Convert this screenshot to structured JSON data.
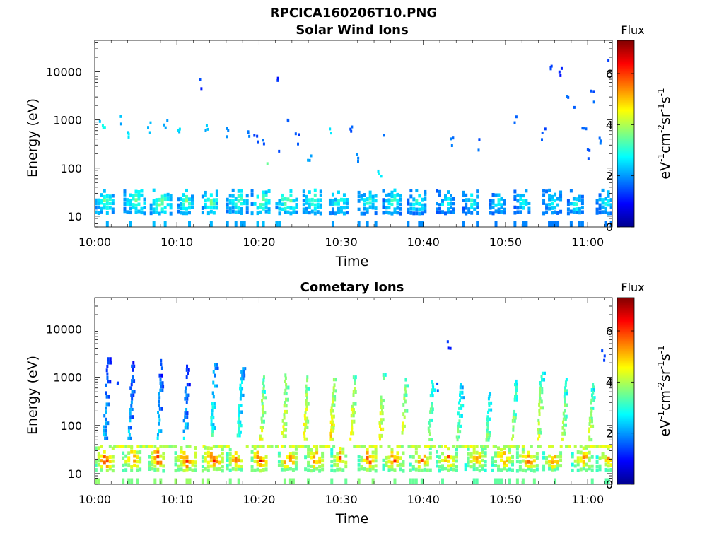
{
  "figure": {
    "title": "RPCICA160206T10.PNG"
  },
  "colors": {
    "colormap": [
      "#00008f",
      "#0000ff",
      "#0080ff",
      "#00ffff",
      "#80ff80",
      "#ffff00",
      "#ff8000",
      "#ff0000",
      "#800000"
    ]
  },
  "chart_data": [
    {
      "type": "heatmap",
      "title": "Solar Wind Ions",
      "xlabel": "Time",
      "ylabel": "Energy (eV)",
      "x_tick_labels": [
        "10:00",
        "10:10",
        "10:20",
        "10:30",
        "10:40",
        "10:50",
        "11:00"
      ],
      "y_tick_labels": [
        "10",
        "100",
        "1000",
        "10000"
      ],
      "y_scale": "log",
      "xlim_minutes_after_10": [
        0,
        63
      ],
      "ylim": [
        6,
        45000
      ],
      "colorbar": {
        "label": "Flux",
        "unit_base": "eV",
        "unit_exp1": "-1",
        "unit_base2": "cm",
        "unit_exp2": "-2",
        "unit_base3": "sr",
        "unit_exp3": "-1",
        "unit_base4": "s",
        "unit_exp4": "-1",
        "range": [
          0,
          7.3
        ],
        "tick_labels": [
          "0",
          "2",
          "4",
          "6"
        ]
      },
      "bursts": [
        {
          "t": 0.5,
          "e": 20,
          "flux": 3.6
        },
        {
          "t": 4.0,
          "e": 20,
          "flux": 3.7
        },
        {
          "t": 7.2,
          "e": 20,
          "flux": 3.8
        },
        {
          "t": 10.5,
          "e": 20,
          "flux": 3.6
        },
        {
          "t": 13.5,
          "e": 20,
          "flux": 3.7
        },
        {
          "t": 16.5,
          "e": 20,
          "flux": 3.5
        },
        {
          "t": 19.5,
          "e": 20,
          "flux": 3.8
        },
        {
          "t": 22.5,
          "e": 20,
          "flux": 3.7
        },
        {
          "t": 25.8,
          "e": 20,
          "flux": 3.5
        },
        {
          "t": 29.0,
          "e": 20,
          "flux": 3.4
        },
        {
          "t": 32.5,
          "e": 20,
          "flux": 3.3
        },
        {
          "t": 35.5,
          "e": 20,
          "flux": 3.3
        },
        {
          "t": 38.5,
          "e": 20,
          "flux": 3.2
        },
        {
          "t": 42.0,
          "e": 20,
          "flux": 3.1
        },
        {
          "t": 45.2,
          "e": 20,
          "flux": 3.1
        },
        {
          "t": 48.5,
          "e": 20,
          "flux": 3.0
        },
        {
          "t": 51.5,
          "e": 20,
          "flux": 3.1
        },
        {
          "t": 55.0,
          "e": 20,
          "flux": 3.0
        },
        {
          "t": 58.0,
          "e": 20,
          "flux": 3.1
        },
        {
          "t": 61.5,
          "e": 20,
          "flux": 3.0
        }
      ],
      "scatter": [
        {
          "t": 0.5,
          "e": 900,
          "flux": 2.4
        },
        {
          "t": 1.0,
          "e": 600,
          "flux": 2.8
        },
        {
          "t": 3.2,
          "e": 900,
          "flux": 2.2
        },
        {
          "t": 4.0,
          "e": 550,
          "flux": 2.5
        },
        {
          "t": 6.5,
          "e": 700,
          "flux": 2.3
        },
        {
          "t": 8.5,
          "e": 800,
          "flux": 2.1
        },
        {
          "t": 10.0,
          "e": 650,
          "flux": 2.4
        },
        {
          "t": 12.8,
          "e": 5200,
          "flux": 1.3
        },
        {
          "t": 13.5,
          "e": 700,
          "flux": 2.2
        },
        {
          "t": 16.0,
          "e": 500,
          "flux": 1.8
        },
        {
          "t": 18.5,
          "e": 600,
          "flux": 1.7
        },
        {
          "t": 19.5,
          "e": 400,
          "flux": 1.5
        },
        {
          "t": 20.5,
          "e": 300,
          "flux": 1.6
        },
        {
          "t": 21.0,
          "e": 120,
          "flux": 3.3
        },
        {
          "t": 22.0,
          "e": 7000,
          "flux": 1.2
        },
        {
          "t": 22.5,
          "e": 250,
          "flux": 1.6
        },
        {
          "t": 23.5,
          "e": 1100,
          "flux": 1.7
        },
        {
          "t": 24.5,
          "e": 400,
          "flux": 1.5
        },
        {
          "t": 26.0,
          "e": 150,
          "flux": 2.0
        },
        {
          "t": 28.5,
          "e": 700,
          "flux": 2.6
        },
        {
          "t": 31.0,
          "e": 600,
          "flux": 1.6
        },
        {
          "t": 32.0,
          "e": 150,
          "flux": 2.0
        },
        {
          "t": 34.5,
          "e": 70,
          "flux": 2.6
        },
        {
          "t": 35.0,
          "e": 500,
          "flux": 1.6
        },
        {
          "t": 43.5,
          "e": 350,
          "flux": 1.7
        },
        {
          "t": 46.5,
          "e": 300,
          "flux": 1.6
        },
        {
          "t": 51.0,
          "e": 1100,
          "flux": 1.7
        },
        {
          "t": 54.5,
          "e": 500,
          "flux": 1.5
        },
        {
          "t": 55.5,
          "e": 13000,
          "flux": 1.3
        },
        {
          "t": 56.5,
          "e": 9000,
          "flux": 1.2
        },
        {
          "t": 57.5,
          "e": 3000,
          "flux": 1.6
        },
        {
          "t": 58.5,
          "e": 1500,
          "flux": 1.5
        },
        {
          "t": 59.5,
          "e": 600,
          "flux": 1.6
        },
        {
          "t": 60.0,
          "e": 200,
          "flux": 1.5
        },
        {
          "t": 60.5,
          "e": 3000,
          "flux": 1.6
        },
        {
          "t": 61.5,
          "e": 400,
          "flux": 1.7
        },
        {
          "t": 62.5,
          "e": 15000,
          "flux": 1.4
        }
      ]
    },
    {
      "type": "heatmap",
      "title": "Cometary Ions",
      "xlabel": "Time",
      "ylabel": "Energy (eV)",
      "x_tick_labels": [
        "10:00",
        "10:10",
        "10:20",
        "10:30",
        "10:40",
        "10:50",
        "11:00"
      ],
      "y_tick_labels": [
        "10",
        "100",
        "1000",
        "10000"
      ],
      "y_scale": "log",
      "xlim_minutes_after_10": [
        0,
        63
      ],
      "ylim": [
        6,
        45000
      ],
      "colorbar": {
        "label": "Flux",
        "unit_base": "eV",
        "unit_exp1": "-1",
        "unit_base2": "cm",
        "unit_exp2": "-2",
        "unit_base3": "sr",
        "unit_exp3": "-1",
        "unit_base4": "s",
        "unit_exp4": "-1",
        "range": [
          0,
          7.3
        ],
        "tick_labels": [
          "0",
          "2",
          "4",
          "6"
        ]
      },
      "bursts": [
        {
          "t": 0.5,
          "e": 20,
          "flux": 6.3
        },
        {
          "t": 3.8,
          "e": 20,
          "flux": 6.0
        },
        {
          "t": 7.0,
          "e": 20,
          "flux": 6.2
        },
        {
          "t": 10.2,
          "e": 20,
          "flux": 6.4
        },
        {
          "t": 13.5,
          "e": 20,
          "flux": 6.3
        },
        {
          "t": 16.5,
          "e": 20,
          "flux": 6.0
        },
        {
          "t": 19.5,
          "e": 20,
          "flux": 6.5
        },
        {
          "t": 22.8,
          "e": 20,
          "flux": 6.1
        },
        {
          "t": 26.0,
          "e": 20,
          "flux": 6.0
        },
        {
          "t": 29.2,
          "e": 20,
          "flux": 5.8
        },
        {
          "t": 32.5,
          "e": 20,
          "flux": 6.2
        },
        {
          "t": 35.5,
          "e": 20,
          "flux": 6.0
        },
        {
          "t": 38.8,
          "e": 20,
          "flux": 5.8
        },
        {
          "t": 42.0,
          "e": 20,
          "flux": 5.7
        },
        {
          "t": 45.5,
          "e": 20,
          "flux": 5.6
        },
        {
          "t": 48.8,
          "e": 20,
          "flux": 5.7
        },
        {
          "t": 51.8,
          "e": 20,
          "flux": 5.9
        },
        {
          "t": 55.0,
          "e": 20,
          "flux": 5.8
        },
        {
          "t": 58.5,
          "e": 20,
          "flux": 5.7
        },
        {
          "t": 61.5,
          "e": 20,
          "flux": 5.6
        }
      ],
      "streaks": [
        {
          "t": 1.5,
          "e_top": 2400,
          "flux": 1.2
        },
        {
          "t": 4.5,
          "e_top": 2000,
          "flux": 1.2
        },
        {
          "t": 8.0,
          "e_top": 2200,
          "flux": 1.3
        },
        {
          "t": 11.2,
          "e_top": 2000,
          "flux": 1.3
        },
        {
          "t": 14.5,
          "e_top": 1800,
          "flux": 2.0
        },
        {
          "t": 17.8,
          "e_top": 1500,
          "flux": 2.2
        },
        {
          "t": 20.5,
          "e_top": 1000,
          "flux": 3.2
        },
        {
          "t": 23.2,
          "e_top": 1100,
          "flux": 3.4
        },
        {
          "t": 25.8,
          "e_top": 1000,
          "flux": 3.5
        },
        {
          "t": 29.0,
          "e_top": 900,
          "flux": 3.6
        },
        {
          "t": 31.5,
          "e_top": 1000,
          "flux": 3.6
        },
        {
          "t": 35.0,
          "e_top": 1300,
          "flux": 3.5
        },
        {
          "t": 37.8,
          "e_top": 1200,
          "flux": 3.3
        },
        {
          "t": 41.0,
          "e_top": 800,
          "flux": 2.8
        },
        {
          "t": 44.5,
          "e_top": 700,
          "flux": 2.6
        },
        {
          "t": 48.0,
          "e_top": 500,
          "flux": 2.5
        },
        {
          "t": 51.2,
          "e_top": 1100,
          "flux": 2.9
        },
        {
          "t": 54.3,
          "e_top": 1200,
          "flux": 3.1
        },
        {
          "t": 57.3,
          "e_top": 900,
          "flux": 3.0
        },
        {
          "t": 60.5,
          "e_top": 700,
          "flux": 3.1
        }
      ],
      "scatter": [
        {
          "t": 43.0,
          "e": 4200,
          "flux": 1.2
        },
        {
          "t": 61.8,
          "e": 2800,
          "flux": 1.3
        },
        {
          "t": 2.5,
          "e": 800,
          "flux": 1.4
        },
        {
          "t": 41.5,
          "e": 700,
          "flux": 1.6
        }
      ]
    }
  ]
}
